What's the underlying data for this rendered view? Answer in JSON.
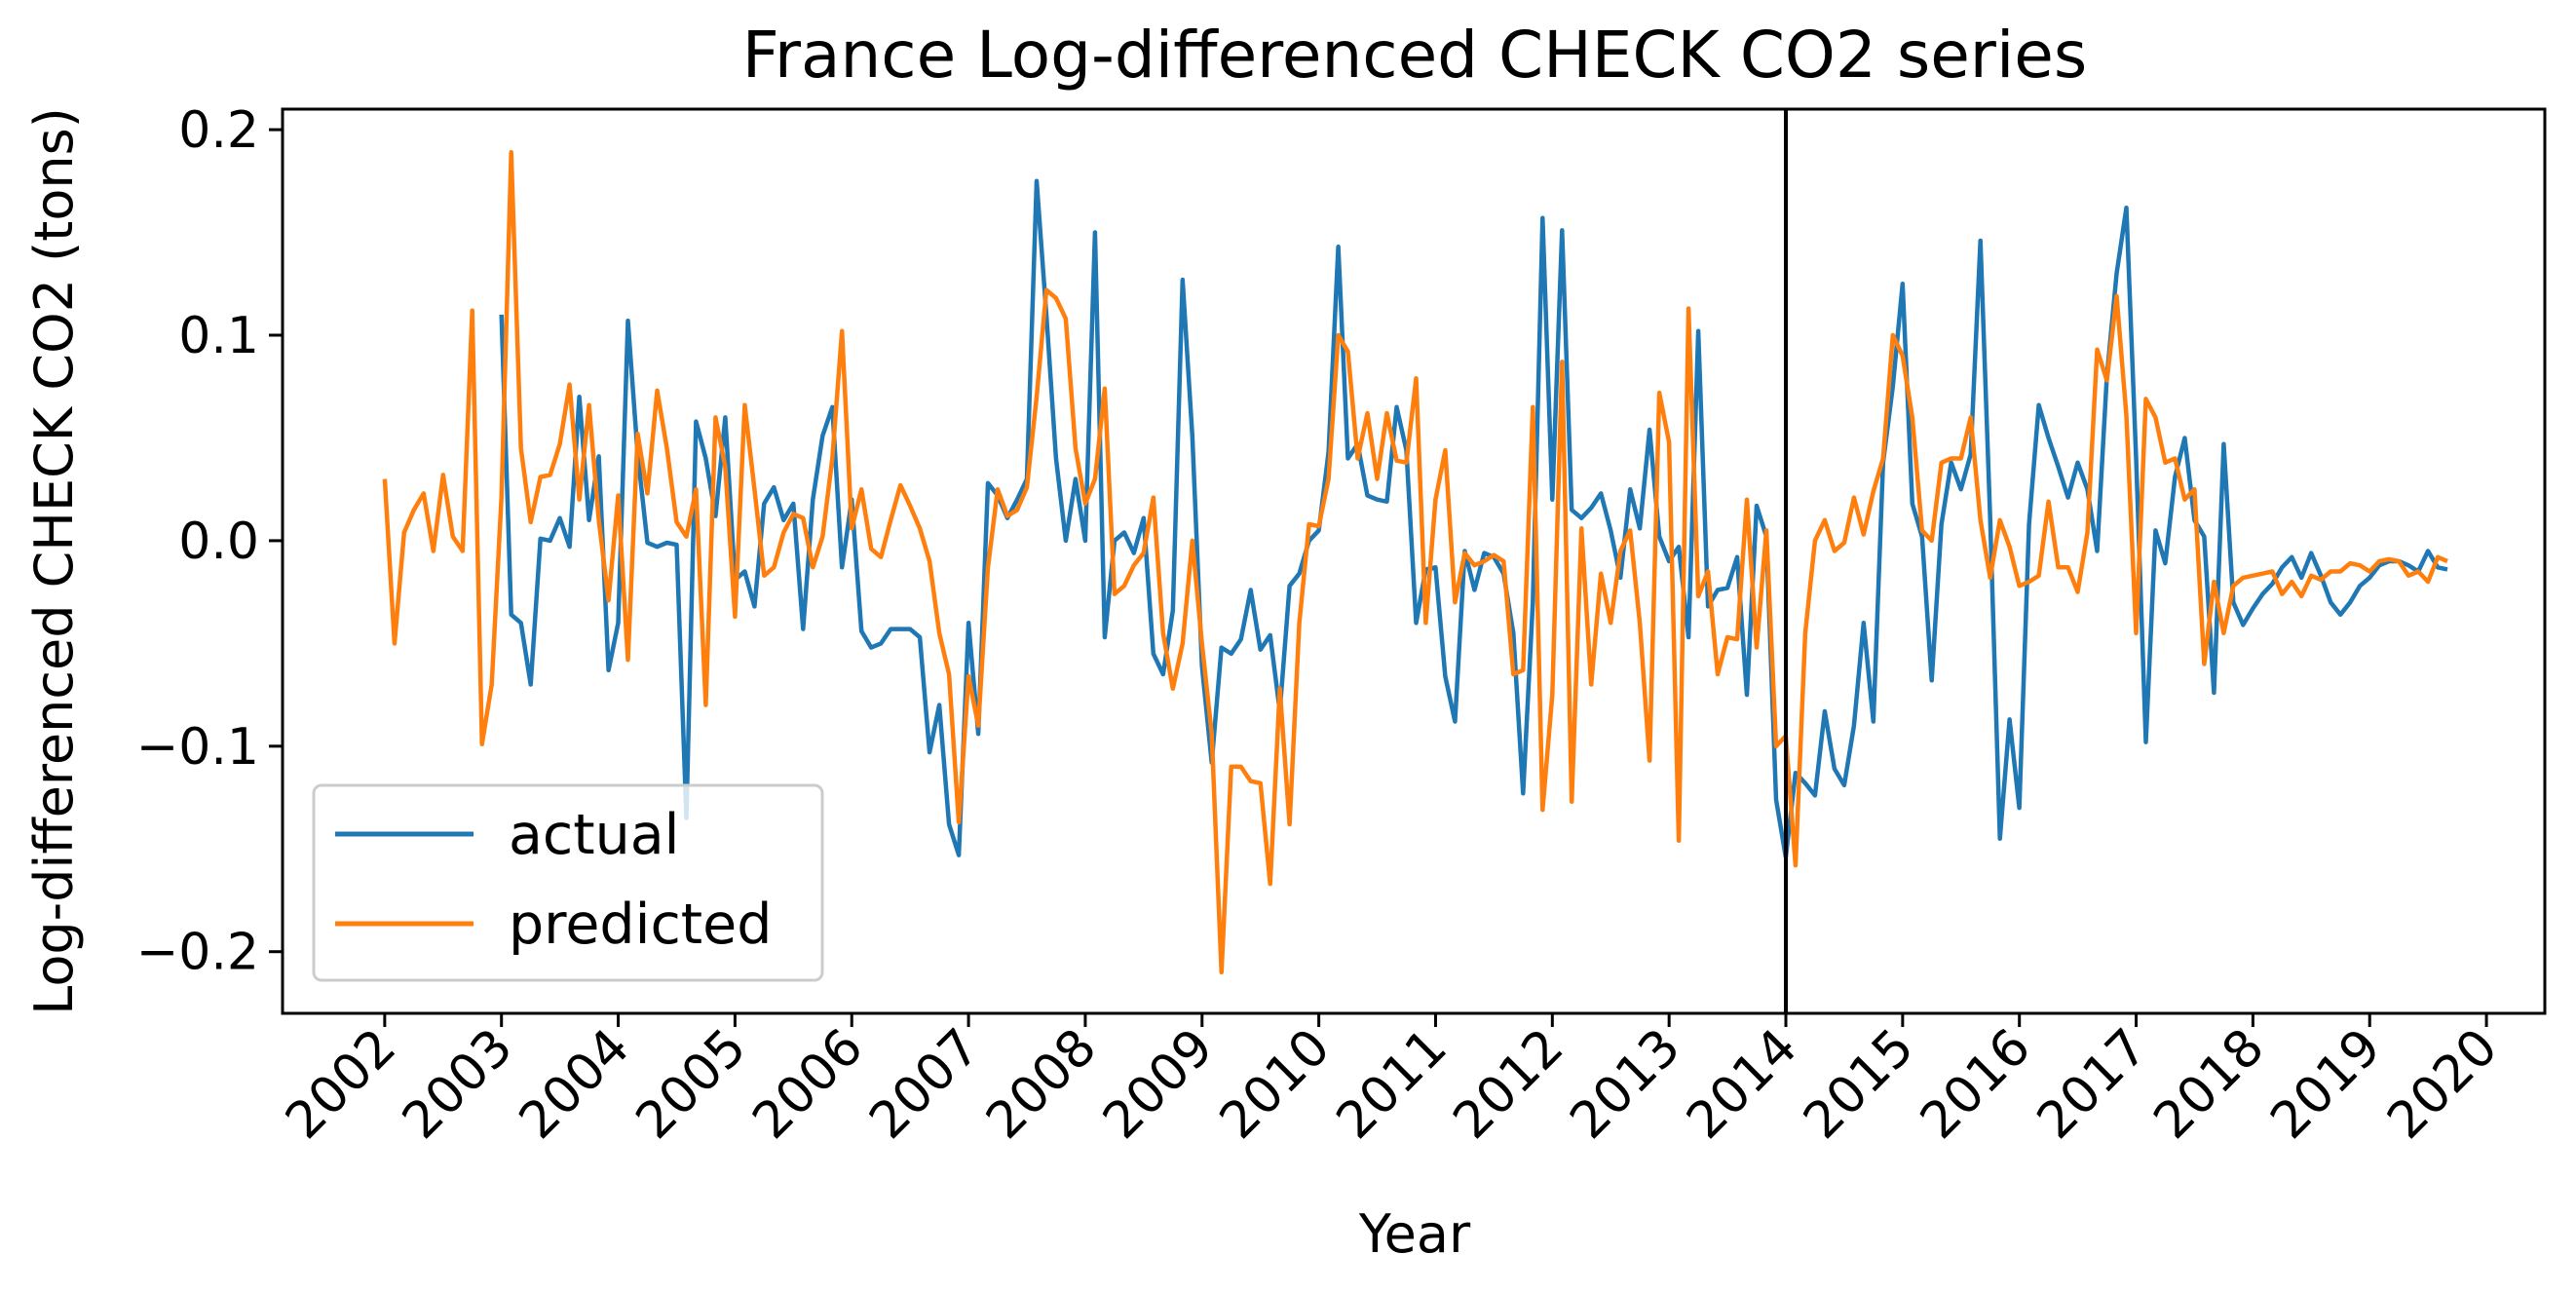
{
  "chart_data": {
    "type": "line",
    "title": "France Log-differenced CHECK CO2 series",
    "xlabel": "Year",
    "ylabel": "Log-differenced CHECK CO2 (tons)",
    "xlim": [
      2001.125,
      2020.5
    ],
    "ylim": [
      -0.23,
      0.21
    ],
    "x_ticks": [
      2002,
      2003,
      2004,
      2005,
      2006,
      2007,
      2008,
      2009,
      2010,
      2011,
      2012,
      2013,
      2014,
      2015,
      2016,
      2017,
      2018,
      2019,
      2020
    ],
    "x_tick_labels": [
      "2002",
      "2003",
      "2004",
      "2005",
      "2006",
      "2007",
      "2008",
      "2009",
      "2010",
      "2011",
      "2012",
      "2013",
      "2014",
      "2015",
      "2016",
      "2017",
      "2018",
      "2019",
      "2020"
    ],
    "y_ticks": [
      -0.2,
      -0.1,
      0.0,
      0.1,
      0.2
    ],
    "y_tick_labels": [
      "−0.2",
      "−0.1",
      "0.0",
      "0.1",
      "0.2"
    ],
    "grid": false,
    "legend_position": "bottom-left",
    "vertical_line": {
      "x": 2014.0,
      "color": "#000000"
    },
    "x_start": 2002.0,
    "x_step": 0.08333,
    "series": [
      {
        "name": "actual",
        "color": "#1f77b4",
        "values": [
          null,
          null,
          null,
          null,
          null,
          null,
          null,
          null,
          null,
          null,
          null,
          null,
          0.11,
          -0.036,
          -0.04,
          -0.07,
          0.001,
          0.0,
          0.011,
          -0.003,
          0.07,
          0.01,
          0.041,
          -0.063,
          -0.04,
          0.107,
          0.042,
          -0.001,
          -0.003,
          -0.001,
          -0.002,
          -0.135,
          0.058,
          0.04,
          0.012,
          0.06,
          -0.019,
          -0.015,
          -0.032,
          0.018,
          0.026,
          0.01,
          0.018,
          -0.043,
          0.02,
          0.051,
          0.065,
          -0.013,
          0.02,
          -0.044,
          -0.052,
          -0.05,
          -0.043,
          -0.043,
          -0.043,
          -0.047,
          -0.103,
          -0.08,
          -0.138,
          -0.153,
          -0.04,
          -0.094,
          0.028,
          0.022,
          0.011,
          0.02,
          0.03,
          0.175,
          0.11,
          0.04,
          0.0,
          0.03,
          0.0,
          0.15,
          -0.047,
          0.0,
          0.004,
          -0.006,
          0.011,
          -0.055,
          -0.065,
          -0.034,
          0.127,
          0.051,
          -0.061,
          -0.108,
          -0.052,
          -0.055,
          -0.048,
          -0.024,
          -0.053,
          -0.046,
          -0.083,
          -0.022,
          -0.016,
          0.0,
          0.005,
          0.043,
          0.143,
          0.04,
          0.047,
          0.022,
          0.02,
          0.019,
          0.065,
          0.044,
          -0.04,
          -0.014,
          -0.013,
          -0.066,
          -0.088,
          -0.005,
          -0.024,
          -0.006,
          -0.008,
          -0.016,
          -0.045,
          -0.123,
          -0.03,
          0.157,
          0.02,
          0.151,
          0.015,
          0.011,
          0.016,
          0.023,
          0.005,
          -0.018,
          0.025,
          0.006,
          0.054,
          0.002,
          -0.01,
          -0.003,
          -0.047,
          0.102,
          -0.032,
          -0.024,
          -0.023,
          -0.008,
          -0.075,
          0.017,
          0.002,
          -0.126,
          -0.154,
          -0.113,
          -0.118,
          -0.124,
          -0.083,
          -0.111,
          -0.119,
          -0.09,
          -0.04,
          -0.088,
          0.038,
          0.075,
          0.125,
          0.018,
          0.002,
          -0.068,
          0.008,
          0.038,
          0.025,
          0.042,
          0.146,
          0.011,
          -0.145,
          -0.087,
          -0.13,
          0.008,
          0.066,
          0.05,
          0.036,
          0.021,
          0.038,
          0.025,
          -0.005,
          0.08,
          0.13,
          0.162,
          0.04,
          -0.098,
          0.005,
          -0.011,
          0.031,
          0.05,
          0.01,
          0.002,
          -0.074,
          0.047,
          -0.03,
          -0.041,
          -0.033,
          -0.026,
          -0.021,
          -0.013,
          -0.008,
          -0.018,
          -0.006,
          -0.017,
          -0.03,
          -0.036,
          -0.03,
          -0.022,
          -0.018,
          -0.012,
          -0.01,
          -0.01,
          -0.012,
          -0.015,
          -0.005,
          -0.013,
          -0.014
        ]
      },
      {
        "name": "predicted",
        "color": "#ff7f0e",
        "values": [
          0.03,
          -0.05,
          0.004,
          0.015,
          0.023,
          -0.005,
          0.032,
          0.002,
          -0.005,
          0.112,
          -0.099,
          -0.07,
          0.021,
          0.189,
          0.045,
          0.009,
          0.031,
          0.032,
          0.047,
          0.076,
          0.02,
          0.066,
          0.01,
          -0.029,
          0.022,
          -0.058,
          0.052,
          0.023,
          0.073,
          0.045,
          0.009,
          0.002,
          0.025,
          -0.08,
          0.06,
          0.036,
          -0.037,
          0.066,
          0.025,
          -0.017,
          -0.013,
          0.004,
          0.013,
          0.011,
          -0.013,
          0.002,
          0.04,
          0.102,
          0.006,
          0.025,
          -0.004,
          -0.008,
          0.01,
          0.027,
          0.017,
          0.006,
          -0.01,
          -0.045,
          -0.065,
          -0.137,
          -0.066,
          -0.09,
          -0.013,
          0.025,
          0.012,
          0.015,
          0.026,
          0.07,
          0.122,
          0.118,
          0.108,
          0.045,
          0.018,
          0.03,
          0.074,
          -0.026,
          -0.022,
          -0.012,
          -0.006,
          0.021,
          -0.045,
          -0.072,
          -0.05,
          0.0,
          -0.05,
          -0.094,
          -0.21,
          -0.11,
          -0.11,
          -0.117,
          -0.118,
          -0.167,
          -0.072,
          -0.138,
          -0.04,
          0.008,
          0.007,
          0.03,
          0.1,
          0.092,
          0.04,
          0.062,
          0.03,
          0.062,
          0.039,
          0.038,
          0.079,
          -0.04,
          0.02,
          0.044,
          -0.03,
          -0.006,
          -0.012,
          -0.01,
          -0.007,
          -0.01,
          -0.065,
          -0.063,
          0.065,
          -0.131,
          -0.075,
          0.087,
          -0.127,
          0.006,
          -0.07,
          -0.016,
          -0.04,
          -0.005,
          0.005,
          -0.04,
          -0.107,
          0.072,
          0.048,
          -0.146,
          0.113,
          -0.027,
          -0.015,
          -0.065,
          -0.047,
          -0.048,
          0.02,
          -0.052,
          0.005,
          -0.1,
          -0.095,
          -0.158,
          -0.045,
          0.0,
          0.01,
          -0.005,
          -0.001,
          0.021,
          0.003,
          0.024,
          0.04,
          0.1,
          0.09,
          0.06,
          0.005,
          0.0,
          0.038,
          0.04,
          0.04,
          0.06,
          0.01,
          -0.018,
          0.01,
          -0.003,
          -0.022,
          -0.02,
          -0.017,
          0.019,
          -0.013,
          -0.013,
          -0.025,
          0.004,
          0.093,
          0.078,
          0.119,
          0.061,
          -0.045,
          0.069,
          0.06,
          0.038,
          0.04,
          0.02,
          0.025,
          -0.06,
          -0.02,
          -0.045,
          -0.022,
          -0.018,
          -0.017,
          -0.016,
          -0.015,
          -0.026,
          -0.02,
          -0.027,
          -0.017,
          -0.019,
          -0.015,
          -0.015,
          -0.011,
          -0.012,
          -0.015,
          -0.01,
          -0.009,
          -0.01,
          -0.017,
          -0.015,
          -0.02,
          -0.008,
          -0.01
        ]
      }
    ]
  }
}
